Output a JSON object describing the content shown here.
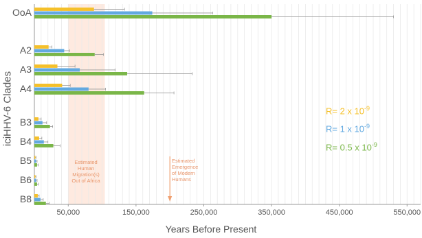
{
  "chart_data": {
    "type": "bar",
    "orientation": "horizontal",
    "xlabel": "Years Before Present",
    "ylabel": "iciHHV-6 Clades",
    "xlim": [
      0,
      570000
    ],
    "xticks": [
      "50,000",
      "150,000",
      "250,000",
      "350,000",
      "450,000",
      "550,000"
    ],
    "xtick_values": [
      50000,
      150000,
      250000,
      350000,
      450000,
      550000
    ],
    "grid": true,
    "legend_position": "right",
    "categories": [
      "OoA",
      "A2",
      "A3",
      "A4",
      "B3",
      "B4",
      "B5",
      "B6",
      "B8"
    ],
    "series": [
      {
        "name": "R= 2 x 10^-9",
        "color": "#f5c02a",
        "values": [
          88000,
          21000,
          34000,
          41000,
          6000,
          7000,
          1500,
          1500,
          5000
        ],
        "error_upper": [
          133000,
          26000,
          60000,
          53000,
          10000,
          11000,
          2500,
          2500,
          7000
        ]
      },
      {
        "name": "R= 1 x 10^-9",
        "color": "#62a9e0",
        "values": [
          174000,
          44000,
          67000,
          80000,
          12000,
          14000,
          2500,
          2500,
          9000
        ],
        "error_upper": [
          263000,
          52000,
          119000,
          105000,
          18000,
          20000,
          4000,
          4000,
          13000
        ]
      },
      {
        "name": "R= 0.5 x 10^-9",
        "color": "#7ab648",
        "values": [
          350000,
          89000,
          137000,
          162000,
          23000,
          28000,
          4000,
          4000,
          17000
        ],
        "error_upper": [
          530000,
          102000,
          233000,
          206000,
          27000,
          38000,
          6000,
          6000,
          22000
        ]
      }
    ],
    "shaded_region": {
      "x_range": [
        50000,
        104000
      ],
      "label": "Estimated Human Migration(s) Out of Africa",
      "color": "#fde3d6"
    },
    "arrow_annotation": {
      "x": 200000,
      "label": "Estimated Emergence of Modern Humans",
      "color": "#f0a070"
    }
  },
  "legend": {
    "r1_prefix": "R= 2 x 10",
    "r1_exp": "-9",
    "r1_color": "#f5c02a",
    "r2_prefix": "R= 1 x 10",
    "r2_exp": "-9",
    "r2_color": "#62a9e0",
    "r3_prefix": "R= 0.5 x 10",
    "r3_exp": "-9",
    "r3_color": "#7ab648"
  },
  "annotations": {
    "ooa_line1": "Estimated",
    "ooa_line2": "Human",
    "ooa_line3": "Migration(s)",
    "ooa_line4": "Out of Africa",
    "emh_line1": "Estimated",
    "emh_line2": "Emergence",
    "emh_line3": "of Modern",
    "emh_line4": "Humans"
  }
}
